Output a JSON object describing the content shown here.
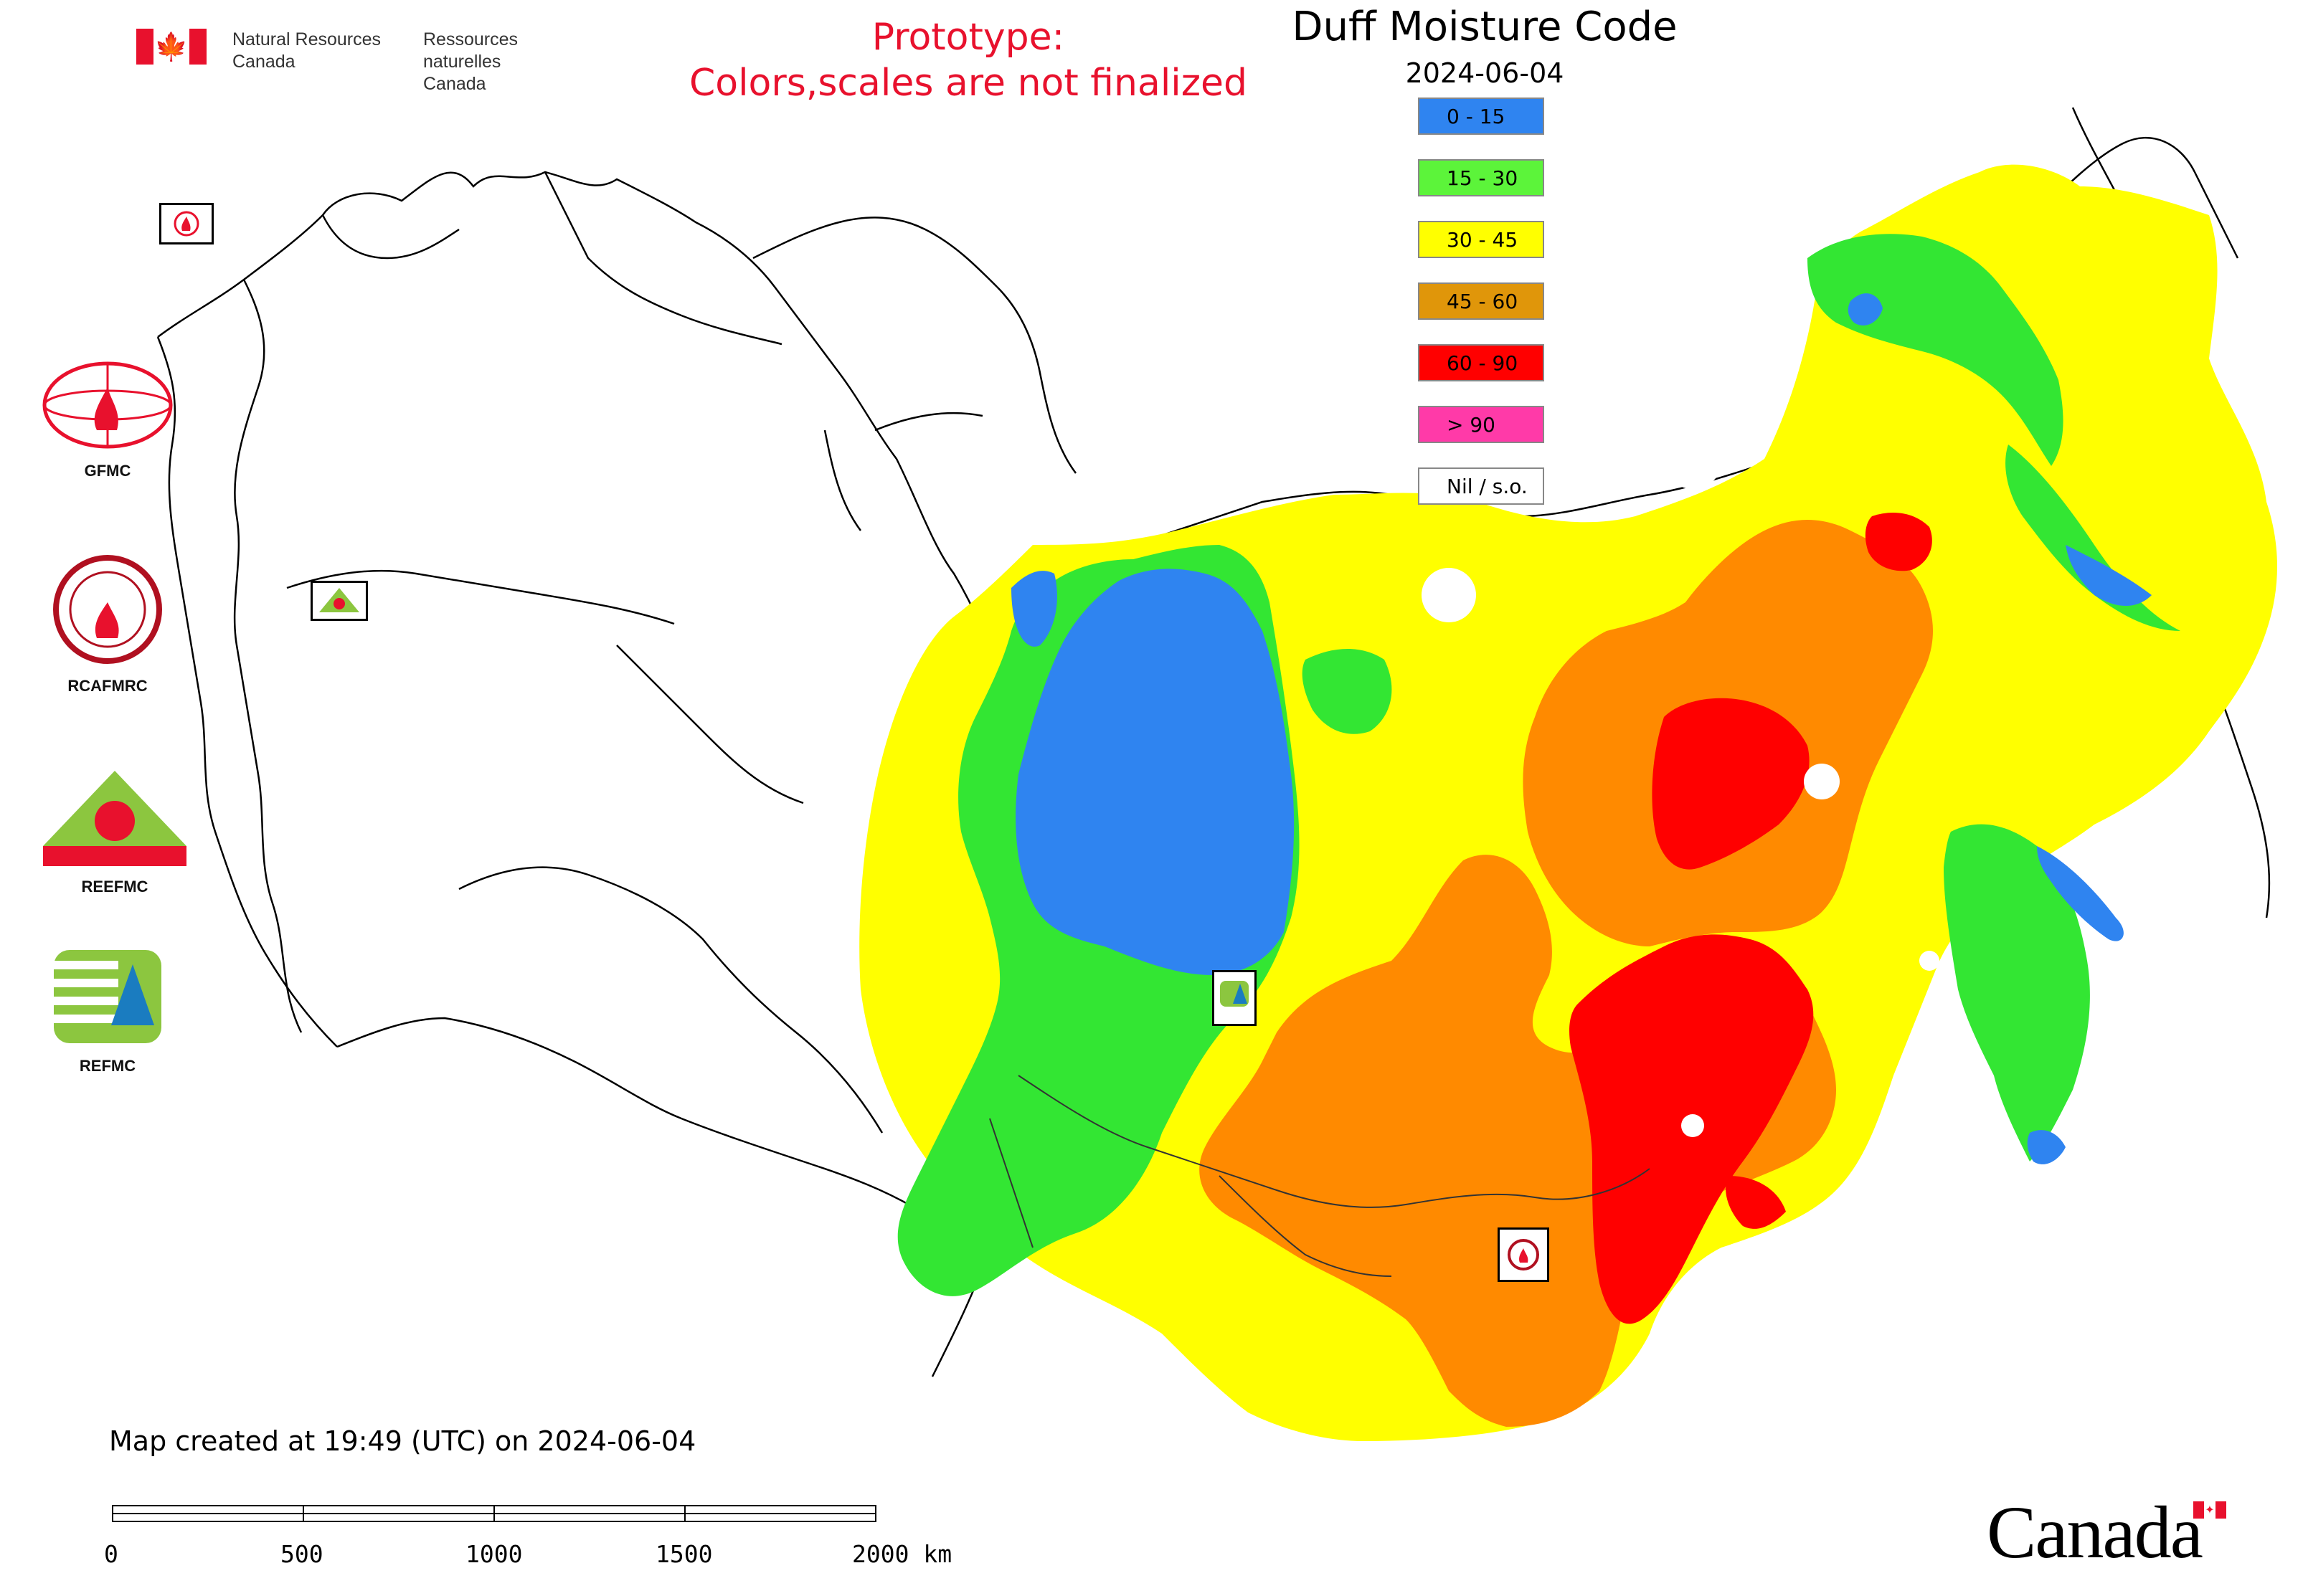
{
  "header": {
    "org_en_line1": "Natural Resources",
    "org_en_line2": "Canada",
    "org_fr_line1": "Ressources naturelles",
    "org_fr_line2": "Canada",
    "flag_glyph": "🍁"
  },
  "notice": {
    "line1": "Prototype:",
    "line2": "Colors,scales are not finalized",
    "color": "#e8112d"
  },
  "legend": {
    "title": "Duff Moisture Code",
    "date": "2024-06-04",
    "items": [
      {
        "label": "0 - 15",
        "color": "#2f84f0"
      },
      {
        "label": "15 - 30",
        "color": "#5cf43a"
      },
      {
        "label": "30 - 45",
        "color": "#ffff00"
      },
      {
        "label": "45 - 60",
        "color": "#e0960a"
      },
      {
        "label": "60 - 90",
        "color": "#ff0000"
      },
      {
        "label": "> 90",
        "color": "#ff3aa8"
      },
      {
        "label": "Nil / s.o.",
        "color": "#ffffff"
      }
    ]
  },
  "side_logos": [
    {
      "name": "GFMC",
      "icon": "gfmc-globe-flame-icon"
    },
    {
      "name": "RCAFMRC",
      "icon": "rcafmrc-seal-icon"
    },
    {
      "name": "REEFMC",
      "icon": "reefmc-triangle-flame-icon"
    },
    {
      "name": "REFMC",
      "icon": "refmc-sigma-tree-icon"
    }
  ],
  "map_markers": [
    {
      "name": "GFMC",
      "icon": "gfmc-marker-icon"
    },
    {
      "name": "REEFMC",
      "icon": "reefmc-marker-icon"
    },
    {
      "name": "REFMC",
      "icon": "refmc-marker-icon"
    },
    {
      "name": "RCAFMRC",
      "icon": "rcafmrc-marker-icon"
    }
  ],
  "footer": {
    "created_text": "Map created at 19:49 (UTC) on 2024-06-04",
    "scale_labels": [
      "0",
      "500",
      "1000",
      "1500",
      "2000 km"
    ],
    "wordmark": "Canada"
  },
  "colors": {
    "accent_red": "#e8112d"
  }
}
